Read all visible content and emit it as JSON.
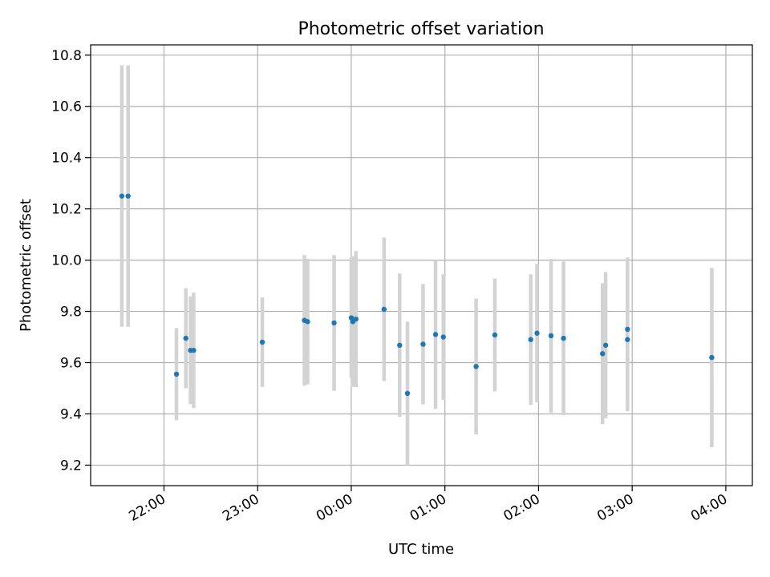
{
  "chart_data": {
    "type": "scatter",
    "title": "Photometric offset variation",
    "xlabel": "UTC time",
    "ylabel": "Photometric offset",
    "x_ticks": [
      "22:00",
      "23:00",
      "00:00",
      "01:00",
      "02:00",
      "03:00",
      "04:00"
    ],
    "y_ticks": [
      "9.2",
      "9.4",
      "9.6",
      "9.8",
      "10.0",
      "10.2",
      "10.4",
      "10.6",
      "10.8"
    ],
    "xlim": [
      "21:13",
      "04:17"
    ],
    "ylim": [
      9.12,
      10.84
    ],
    "grid": true,
    "colors": {
      "point": "#1f77b4",
      "errorbar": "#d3d3d3",
      "grid": "#b0b0b0"
    },
    "series": [
      {
        "points": [
          {
            "x": "21:33",
            "y": 10.25,
            "err": 0.51
          },
          {
            "x": "21:37",
            "y": 10.25,
            "err": 0.51
          },
          {
            "x": "22:08",
            "y": 9.555,
            "err": 0.18
          },
          {
            "x": "22:14",
            "y": 9.695,
            "err": 0.195
          },
          {
            "x": "22:17",
            "y": 9.648,
            "err": 0.21
          },
          {
            "x": "22:19",
            "y": 9.648,
            "err": 0.225
          },
          {
            "x": "23:03",
            "y": 9.68,
            "err": 0.175
          },
          {
            "x": "23:30",
            "y": 9.765,
            "err": 0.255
          },
          {
            "x": "23:32",
            "y": 9.76,
            "err": 0.245
          },
          {
            "x": "23:49",
            "y": 9.755,
            "err": 0.265
          },
          {
            "x": "00:00",
            "y": 9.775,
            "err": 0.235
          },
          {
            "x": "00:01",
            "y": 9.76,
            "err": 0.255
          },
          {
            "x": "00:03",
            "y": 9.77,
            "err": 0.265
          },
          {
            "x": "00:21",
            "y": 9.808,
            "err": 0.28
          },
          {
            "x": "00:31",
            "y": 9.668,
            "err": 0.28
          },
          {
            "x": "00:36",
            "y": 9.48,
            "err": 0.28
          },
          {
            "x": "00:46",
            "y": 9.672,
            "err": 0.235
          },
          {
            "x": "00:54",
            "y": 9.71,
            "err": 0.29
          },
          {
            "x": "00:59",
            "y": 9.7,
            "err": 0.245
          },
          {
            "x": "01:20",
            "y": 9.585,
            "err": 0.265
          },
          {
            "x": "01:32",
            "y": 9.708,
            "err": 0.22
          },
          {
            "x": "01:55",
            "y": 9.69,
            "err": 0.255
          },
          {
            "x": "01:59",
            "y": 9.715,
            "err": 0.27
          },
          {
            "x": "02:08",
            "y": 9.705,
            "err": 0.3
          },
          {
            "x": "02:16",
            "y": 9.695,
            "err": 0.3
          },
          {
            "x": "02:41",
            "y": 9.635,
            "err": 0.275
          },
          {
            "x": "02:43",
            "y": 9.668,
            "err": 0.285
          },
          {
            "x": "02:57",
            "y": 9.73,
            "err": 0.28
          },
          {
            "x": "02:57",
            "y": 9.69,
            "err": 0.28
          },
          {
            "x": "03:51",
            "y": 9.62,
            "err": 0.35
          }
        ]
      }
    ]
  }
}
